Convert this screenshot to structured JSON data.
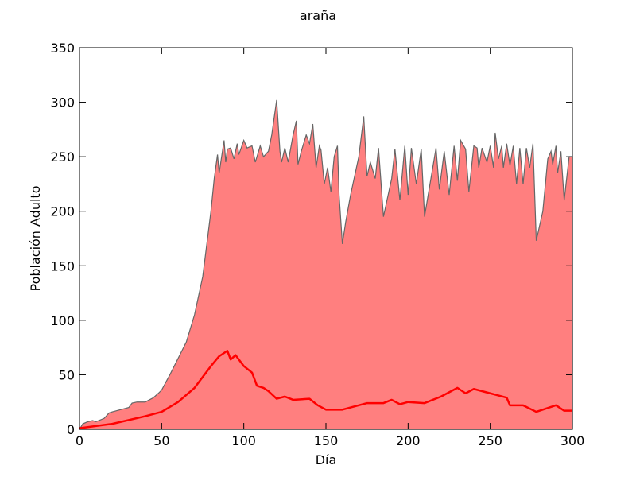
{
  "chart_data": {
    "type": "line",
    "title": "araña",
    "xlabel": "Día",
    "ylabel": "Población Adulto",
    "xlim": [
      0,
      300
    ],
    "ylim": [
      0,
      350
    ],
    "xticks": [
      0,
      50,
      100,
      150,
      200,
      250,
      300
    ],
    "yticks": [
      0,
      50,
      100,
      150,
      200,
      250,
      300,
      350
    ],
    "series": [
      {
        "style": "area",
        "color": "#666666",
        "fill_color": "#ff7f7f",
        "x": [
          0,
          2,
          5,
          8,
          10,
          15,
          18,
          20,
          25,
          30,
          32,
          35,
          40,
          45,
          48,
          50,
          55,
          60,
          65,
          70,
          75,
          80,
          82,
          84,
          85,
          88,
          89,
          90,
          92,
          94,
          96,
          97,
          100,
          102,
          105,
          107,
          110,
          112,
          115,
          117,
          120,
          122,
          123,
          125,
          127,
          130,
          132,
          133,
          135,
          138,
          140,
          142,
          144,
          146,
          147,
          149,
          151,
          153,
          155,
          157,
          158,
          160,
          162,
          165,
          170,
          173,
          175,
          177,
          180,
          182,
          185,
          190,
          192,
          195,
          198,
          200,
          202,
          205,
          208,
          210,
          215,
          217,
          219,
          222,
          225,
          228,
          230,
          232,
          235,
          237,
          240,
          242,
          243,
          245,
          248,
          250,
          252,
          253,
          255,
          257,
          258,
          260,
          262,
          264,
          266,
          268,
          270,
          272,
          274,
          276,
          278,
          282,
          285,
          287,
          288,
          290,
          291,
          293,
          295,
          298,
          300
        ],
        "values": [
          0,
          5,
          7,
          8,
          7,
          10,
          15,
          16,
          18,
          20,
          24,
          25,
          25,
          29,
          33,
          36,
          50,
          65,
          80,
          105,
          140,
          200,
          230,
          252,
          235,
          265,
          245,
          257,
          258,
          248,
          262,
          252,
          265,
          258,
          260,
          245,
          260,
          250,
          255,
          270,
          302,
          255,
          245,
          258,
          245,
          270,
          283,
          243,
          255,
          270,
          262,
          280,
          240,
          260,
          256,
          225,
          240,
          218,
          250,
          260,
          215,
          170,
          190,
          215,
          250,
          287,
          232,
          245,
          230,
          258,
          195,
          230,
          257,
          210,
          260,
          215,
          258,
          225,
          257,
          195,
          240,
          258,
          220,
          255,
          215,
          260,
          228,
          265,
          257,
          218,
          260,
          258,
          240,
          258,
          245,
          260,
          240,
          272,
          248,
          260,
          240,
          262,
          242,
          260,
          225,
          258,
          225,
          258,
          240,
          262,
          173,
          200,
          248,
          255,
          243,
          260,
          235,
          255,
          210,
          250,
          250
        ]
      },
      {
        "style": "line",
        "color": "#ff0000",
        "x": [
          0,
          20,
          40,
          50,
          60,
          70,
          80,
          85,
          90,
          92,
          95,
          100,
          105,
          108,
          112,
          115,
          120,
          125,
          130,
          140,
          145,
          150,
          160,
          170,
          175,
          185,
          190,
          195,
          200,
          210,
          220,
          230,
          235,
          240,
          245,
          250,
          260,
          262,
          270,
          278,
          290,
          295,
          300
        ],
        "values": [
          1,
          5,
          12,
          16,
          25,
          38,
          58,
          67,
          72,
          64,
          68,
          58,
          52,
          40,
          38,
          35,
          28,
          30,
          27,
          28,
          22,
          18,
          18,
          22,
          24,
          24,
          27,
          23,
          25,
          24,
          30,
          38,
          33,
          37,
          35,
          33,
          29,
          22,
          22,
          16,
          22,
          17,
          17
        ]
      }
    ]
  }
}
